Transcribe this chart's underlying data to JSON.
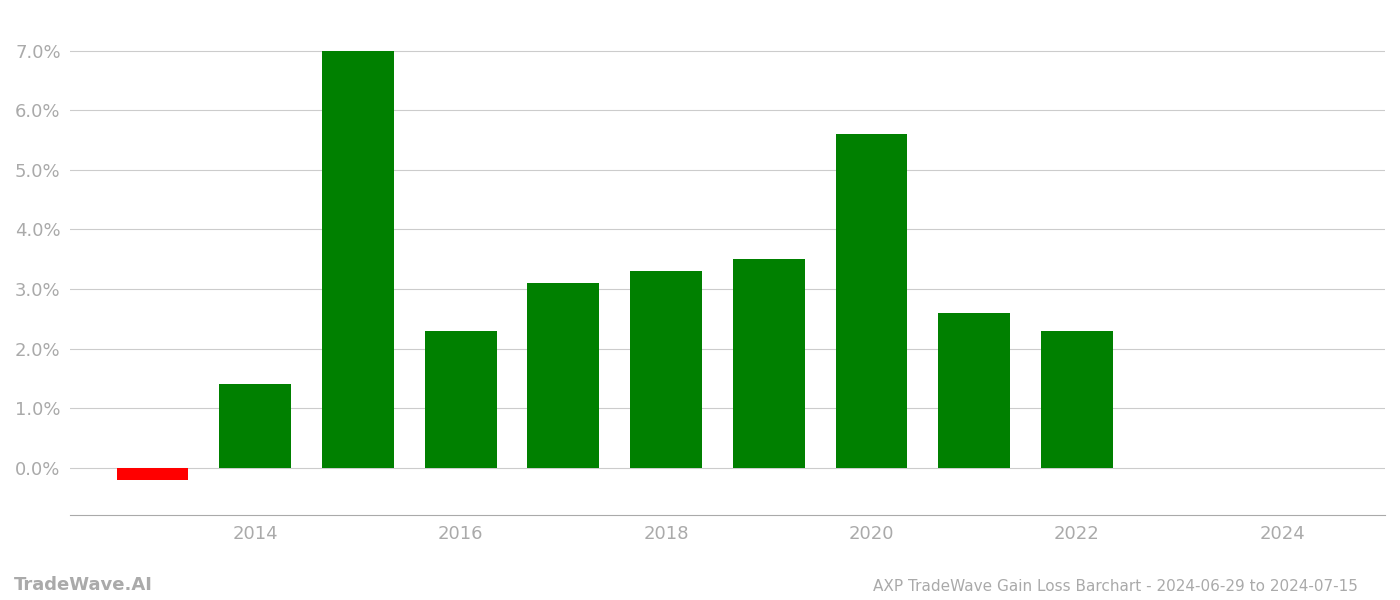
{
  "years": [
    2013,
    2014,
    2015,
    2016,
    2017,
    2018,
    2019,
    2020,
    2021,
    2022,
    2023
  ],
  "values": [
    -0.002,
    0.014,
    0.07,
    0.023,
    0.031,
    0.033,
    0.035,
    0.056,
    0.026,
    0.023,
    0.0
  ],
  "colors": [
    "#ff0000",
    "#008000",
    "#008000",
    "#008000",
    "#008000",
    "#008000",
    "#008000",
    "#008000",
    "#008000",
    "#008000",
    "#008000"
  ],
  "title": "AXP TradeWave Gain Loss Barchart - 2024-06-29 to 2024-07-15",
  "ylim_min": -0.008,
  "ylim_max": 0.076,
  "yticks": [
    0.0,
    0.01,
    0.02,
    0.03,
    0.04,
    0.05,
    0.06,
    0.07
  ],
  "ytick_labels": [
    "0.0%",
    "1.0%",
    "2.0%",
    "3.0%",
    "4.0%",
    "5.0%",
    "6.0%",
    "7.0%"
  ],
  "xticks": [
    2014,
    2016,
    2018,
    2020,
    2022,
    2024
  ],
  "xlim_min": 2012.2,
  "xlim_max": 2025.0,
  "watermark": "TradeWave.AI",
  "bar_width": 0.7,
  "background_color": "#ffffff",
  "grid_color": "#cccccc",
  "grid_linewidth": 0.8,
  "axis_color": "#aaaaaa",
  "tick_color": "#aaaaaa",
  "title_color": "#aaaaaa",
  "watermark_color": "#aaaaaa",
  "tick_fontsize": 13,
  "title_fontsize": 11,
  "watermark_fontsize": 13
}
